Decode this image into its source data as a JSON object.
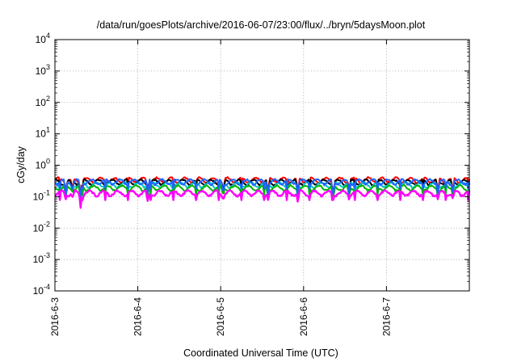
{
  "chart_data": {
    "type": "line",
    "title": "/data/run/goesPlots/archive/2016-06-07/23:00/flux/../bryn/5daysMoon.plot",
    "xlabel": "Coordinated Universal Time (UTC)",
    "ylabel": "cGy/day",
    "yscale": "log",
    "ylim": [
      0.0001,
      10000
    ],
    "y_ticks": [
      {
        "value": 0.0001,
        "base": "10",
        "exp": "-4"
      },
      {
        "value": 0.001,
        "base": "10",
        "exp": "-3"
      },
      {
        "value": 0.01,
        "base": "10",
        "exp": "-2"
      },
      {
        "value": 0.1,
        "base": "10",
        "exp": "-1"
      },
      {
        "value": 1,
        "base": "10",
        "exp": "0"
      },
      {
        "value": 10,
        "base": "10",
        "exp": "1"
      },
      {
        "value": 100,
        "base": "10",
        "exp": "2"
      },
      {
        "value": 1000,
        "base": "10",
        "exp": "3"
      },
      {
        "value": 10000,
        "base": "10",
        "exp": "4"
      }
    ],
    "xlim": [
      "2016-06-03",
      "2016-06-08"
    ],
    "x_ticks": [
      "2016-6-3",
      "2016-6-4",
      "2016-6-5",
      "2016-6-6",
      "2016-6-7"
    ],
    "grid": true,
    "series": [
      {
        "color": "#ff0000",
        "base_value": 0.34,
        "dips": [
          [
            0.13,
            0.12
          ],
          [
            0.21,
            0.16
          ],
          [
            0.31,
            0.07
          ],
          [
            1.12,
            0.14
          ],
          [
            2.03,
            0.13
          ],
          [
            2.57,
            0.12
          ],
          [
            2.93,
            0.11
          ],
          [
            3.36,
            0.11
          ],
          [
            3.55,
            0.12
          ],
          [
            4.62,
            0.12
          ],
          [
            4.8,
            0.14
          ]
        ]
      },
      {
        "color": "#000000",
        "base_value": 0.29,
        "dips": [
          [
            0.13,
            0.11
          ],
          [
            0.21,
            0.15
          ],
          [
            0.31,
            0.065
          ],
          [
            1.12,
            0.13
          ],
          [
            2.03,
            0.12
          ],
          [
            2.57,
            0.11
          ],
          [
            2.93,
            0.1
          ],
          [
            3.36,
            0.1
          ],
          [
            3.55,
            0.11
          ],
          [
            4.62,
            0.11
          ],
          [
            4.8,
            0.13
          ]
        ]
      },
      {
        "color": "#00c8c8",
        "base_value": 0.24,
        "dips": [
          [
            0.13,
            0.1
          ],
          [
            0.21,
            0.14
          ],
          [
            0.31,
            0.06
          ],
          [
            1.12,
            0.12
          ],
          [
            2.03,
            0.11
          ],
          [
            2.57,
            0.1
          ],
          [
            2.93,
            0.095
          ],
          [
            3.36,
            0.095
          ],
          [
            3.55,
            0.1
          ],
          [
            4.62,
            0.1
          ],
          [
            4.8,
            0.12
          ]
        ]
      },
      {
        "color": "#00b400",
        "base_value": 0.19,
        "dips": [
          [
            0.13,
            0.095
          ],
          [
            0.21,
            0.13
          ],
          [
            0.31,
            0.055
          ],
          [
            1.12,
            0.11
          ],
          [
            2.03,
            0.1
          ],
          [
            2.57,
            0.095
          ],
          [
            2.93,
            0.09
          ],
          [
            3.36,
            0.09
          ],
          [
            3.55,
            0.095
          ],
          [
            4.62,
            0.095
          ],
          [
            4.8,
            0.11
          ]
        ]
      },
      {
        "color": "#1e64ff",
        "base_value": 0.3,
        "dips": [
          [
            0.13,
            0.1
          ],
          [
            0.21,
            0.14
          ],
          [
            0.31,
            0.06
          ],
          [
            1.12,
            0.12
          ],
          [
            2.03,
            0.1
          ],
          [
            2.57,
            0.1
          ],
          [
            2.93,
            0.09
          ],
          [
            3.36,
            0.09
          ],
          [
            3.55,
            0.1
          ],
          [
            4.62,
            0.1
          ],
          [
            4.8,
            0.12
          ]
        ]
      },
      {
        "color": "#ff00ff",
        "base_value": 0.13,
        "dips": [
          [
            0.13,
            0.08
          ],
          [
            0.21,
            0.09
          ],
          [
            0.31,
            0.042
          ],
          [
            1.12,
            0.07
          ],
          [
            2.03,
            0.07
          ],
          [
            2.57,
            0.075
          ],
          [
            2.93,
            0.065
          ],
          [
            3.36,
            0.07
          ],
          [
            3.55,
            0.075
          ],
          [
            4.62,
            0.08
          ],
          [
            4.8,
            0.085
          ]
        ]
      }
    ]
  }
}
